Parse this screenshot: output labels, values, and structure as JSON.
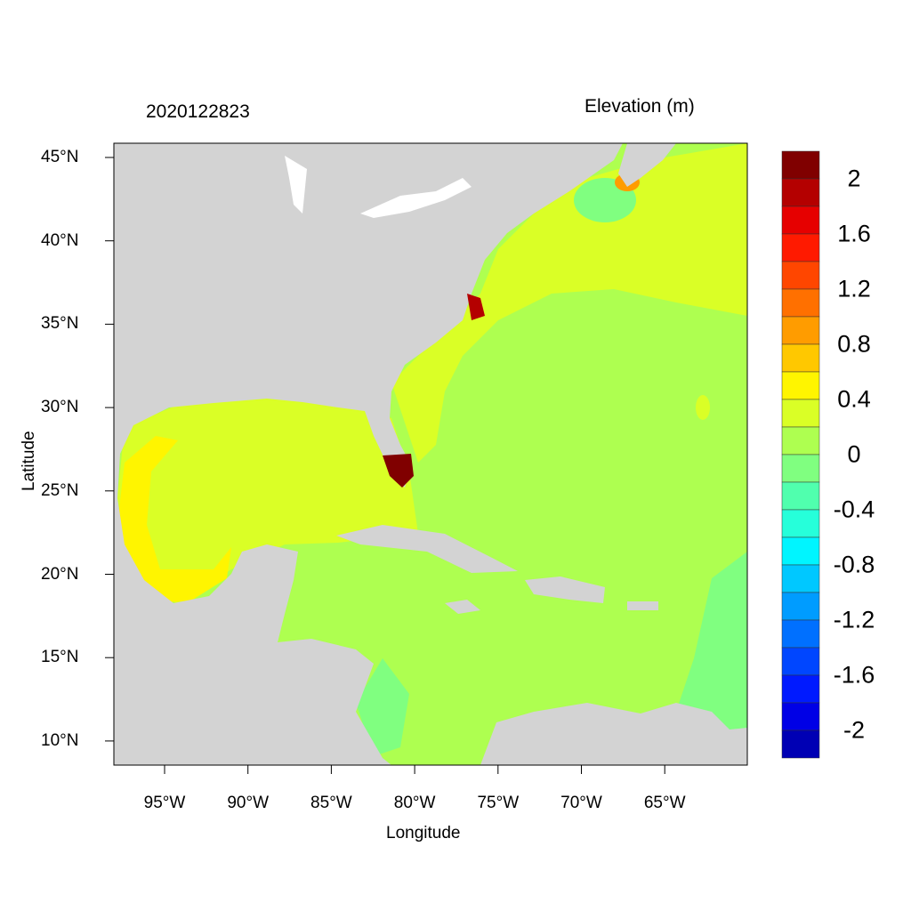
{
  "header": {
    "date": "2020122823",
    "variable": "Elevation (m)"
  },
  "axes": {
    "xlabel": "Longitude",
    "ylabel": "Latitude",
    "xticks": [
      "95°W",
      "90°W",
      "85°W",
      "80°W",
      "75°W",
      "70°W",
      "65°W"
    ],
    "yticks": [
      "45°N",
      "40°N",
      "35°N",
      "30°N",
      "25°N",
      "20°N",
      "15°N",
      "10°N"
    ]
  },
  "colorbar": {
    "labels": [
      "2",
      "1.6",
      "1.2",
      "0.8",
      "0.4",
      "0",
      "-0.4",
      "-0.8",
      "-1.2",
      "-1.6",
      "-2"
    ],
    "colors": [
      "#800000",
      "#B40000",
      "#E60000",
      "#FF1A00",
      "#FF4600",
      "#FF7000",
      "#FF9C00",
      "#FFC800",
      "#FFF500",
      "#DAFF26",
      "#AEFF50",
      "#80FF80",
      "#50FFAE",
      "#26FFDA",
      "#00F5FF",
      "#00C8FF",
      "#009CFF",
      "#0070FF",
      "#0046FF",
      "#001AFF",
      "#0000E6",
      "#0000B4"
    ]
  }
}
